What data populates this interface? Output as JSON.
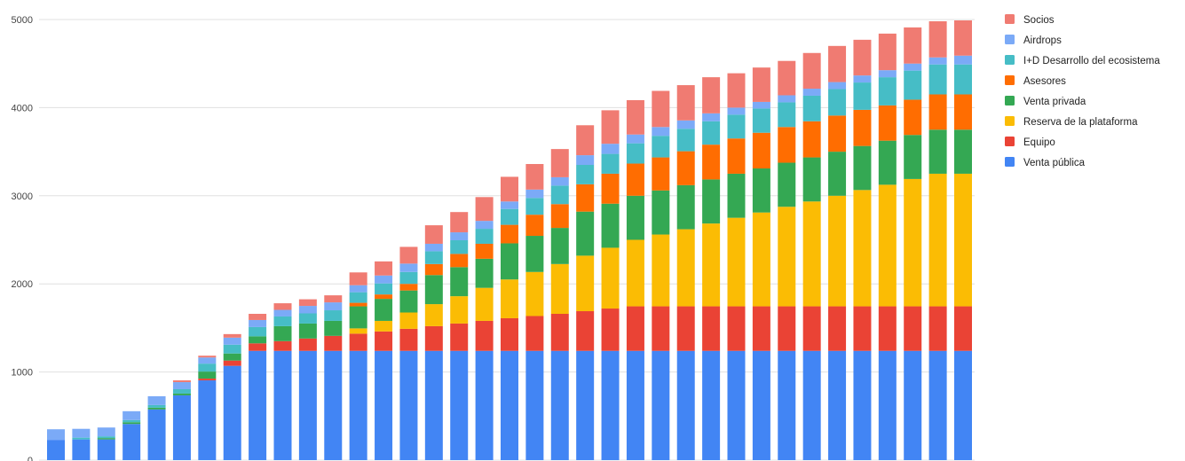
{
  "chart_data": {
    "type": "bar",
    "stacked": true,
    "title": "",
    "xlabel": "",
    "ylabel": "",
    "ylim": [
      0,
      5000
    ],
    "yticks": [
      "0",
      "1000",
      "2000",
      "3000",
      "4000",
      "5000"
    ],
    "grid": true,
    "legend_position": "right",
    "series": [
      {
        "name": "Venta pública",
        "color": "#4285f4",
        "values": [
          230,
          235,
          235,
          410,
          575,
          735,
          905,
          1070,
          1240,
          1240,
          1240,
          1240,
          1240,
          1240,
          1240,
          1240,
          1240,
          1240,
          1240,
          1240,
          1240,
          1240,
          1240,
          1240,
          1240,
          1240,
          1240,
          1240,
          1240,
          1240,
          1240,
          1240,
          1240,
          1240,
          1240,
          1240,
          1240
        ]
      },
      {
        "name": "Equipo",
        "color": "#ea4335",
        "values": [
          0,
          0,
          0,
          0,
          0,
          0,
          20,
          60,
          85,
          110,
          140,
          170,
          195,
          220,
          250,
          280,
          310,
          340,
          370,
          395,
          420,
          450,
          480,
          505,
          505,
          505,
          505,
          505,
          505,
          505,
          505,
          505,
          505,
          505,
          505,
          505,
          505
        ]
      },
      {
        "name": "Reserva de la plataforma",
        "color": "#fbbc04",
        "values": [
          0,
          0,
          0,
          0,
          0,
          0,
          0,
          0,
          0,
          0,
          0,
          0,
          60,
          120,
          185,
          250,
          310,
          375,
          440,
          500,
          565,
          630,
          690,
          755,
          815,
          875,
          940,
          1005,
          1065,
          1130,
          1190,
          1255,
          1320,
          1380,
          1445,
          1505,
          1505
        ]
      },
      {
        "name": "Venta privada",
        "color": "#34a853",
        "values": [
          0,
          0,
          15,
          20,
          20,
          20,
          80,
          80,
          80,
          170,
          170,
          170,
          250,
          250,
          250,
          330,
          330,
          330,
          410,
          410,
          410,
          500,
          500,
          500,
          500,
          500,
          500,
          500,
          500,
          500,
          500,
          500,
          500,
          500,
          500,
          500,
          500
        ]
      },
      {
        "name": "Asesores",
        "color": "#ff6d01",
        "values": [
          0,
          0,
          0,
          0,
          0,
          0,
          0,
          0,
          0,
          0,
          0,
          0,
          40,
          50,
          75,
          125,
          150,
          170,
          210,
          240,
          270,
          310,
          340,
          365,
          375,
          385,
          395,
          400,
          405,
          405,
          410,
          410,
          410,
          400,
          400,
          400,
          400
        ]
      },
      {
        "name": "I+D Desarrollo del ecosistema",
        "color": "#46bdc6",
        "values": [
          0,
          20,
          20,
          25,
          30,
          50,
          90,
          100,
          105,
          110,
          115,
          120,
          120,
          125,
          135,
          145,
          155,
          170,
          180,
          190,
          210,
          220,
          225,
          230,
          245,
          255,
          265,
          270,
          275,
          280,
          290,
          300,
          310,
          320,
          330,
          340,
          340
        ]
      },
      {
        "name": "Airdrops",
        "color": "#7baaf7",
        "values": [
          120,
          100,
          100,
          100,
          100,
          80,
          70,
          80,
          80,
          75,
          85,
          90,
          80,
          90,
          95,
          85,
          90,
          90,
          85,
          95,
          95,
          110,
          115,
          100,
          100,
          95,
          90,
          80,
          75,
          80,
          80,
          80,
          80,
          80,
          80,
          80,
          100
        ]
      },
      {
        "name": "Socios",
        "color": "#f07b72",
        "values": [
          0,
          0,
          0,
          0,
          0,
          20,
          20,
          40,
          70,
          75,
          75,
          80,
          145,
          160,
          190,
          210,
          230,
          270,
          280,
          290,
          320,
          340,
          380,
          390,
          410,
          400,
          410,
          390,
          390,
          390,
          405,
          410,
          405,
          415,
          410,
          410,
          400
        ]
      }
    ]
  }
}
